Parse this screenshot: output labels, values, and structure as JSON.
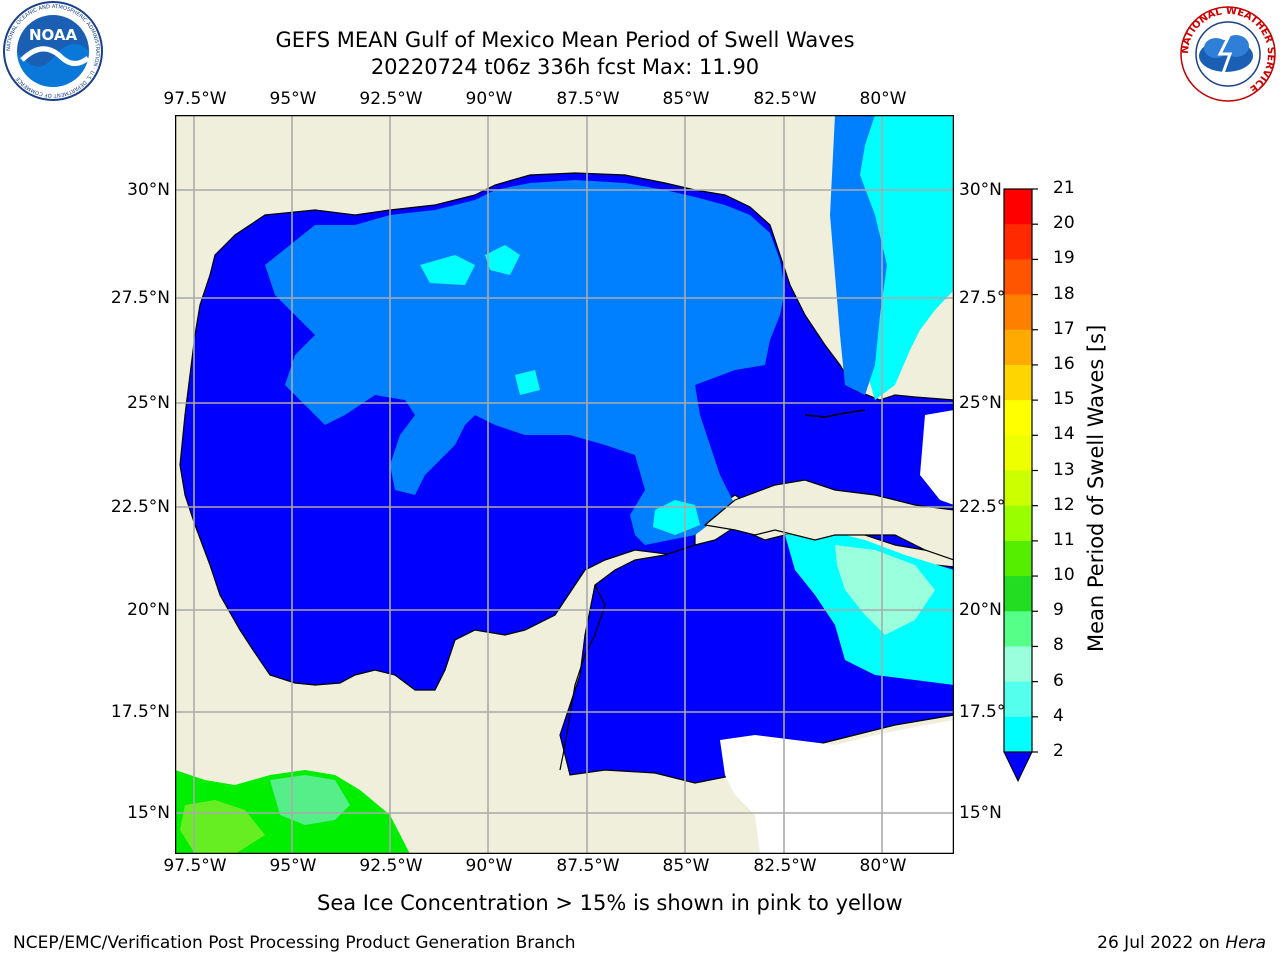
{
  "header": {
    "title_line1": "GEFS MEAN Gulf of Mexico Mean Period of Swell Waves",
    "title_line2": "20220724 t06z 336h fcst   Max: 11.90"
  },
  "logos": {
    "left": {
      "name": "noaa-logo",
      "text": "NOAA",
      "ring_text": "NATIONAL OCEANIC AND ATMOSPHERIC ADMINISTRATION · U.S. DEPARTMENT OF COMMERCE"
    },
    "right": {
      "name": "nws-logo",
      "ring_text": "NATIONAL WEATHER SERVICE"
    }
  },
  "map": {
    "lon_labels": [
      "97.5°W",
      "95°W",
      "92.5°W",
      "90°W",
      "87.5°W",
      "85°W",
      "82.5°W",
      "80°W"
    ],
    "lat_labels": [
      "30°N",
      "27.5°N",
      "25°N",
      "22.5°N",
      "20°N",
      "17.5°N",
      "15°N"
    ],
    "lon_range": [
      -98,
      -78
    ],
    "lat_range": [
      14,
      32
    ],
    "grid": true
  },
  "colorbar": {
    "label": "Mean Period of Swell Waves [s]",
    "ticks": [
      "21",
      "20",
      "19",
      "18",
      "17",
      "16",
      "15",
      "14",
      "13",
      "12",
      "11",
      "10",
      "9",
      "8",
      "6",
      "4",
      "2"
    ],
    "colors": [
      "#ff0000",
      "#ff2a00",
      "#ff5500",
      "#ff7f00",
      "#ffaa00",
      "#ffd500",
      "#ffff00",
      "#eeff00",
      "#ccff00",
      "#99ff00",
      "#55ee00",
      "#22dd22",
      "#55ff88",
      "#99ffdd",
      "#55ffee",
      "#00ffff",
      "#0099ff",
      "#0000ff"
    ],
    "extend": "min"
  },
  "note": "Sea Ice Concentration > 15% is shown in pink to yellow",
  "footer": {
    "left": "NCEP/EMC/Verification Post Processing Product Generation Branch",
    "right_date": "26 Jul 2022 on ",
    "right_machine": "Hera"
  }
}
